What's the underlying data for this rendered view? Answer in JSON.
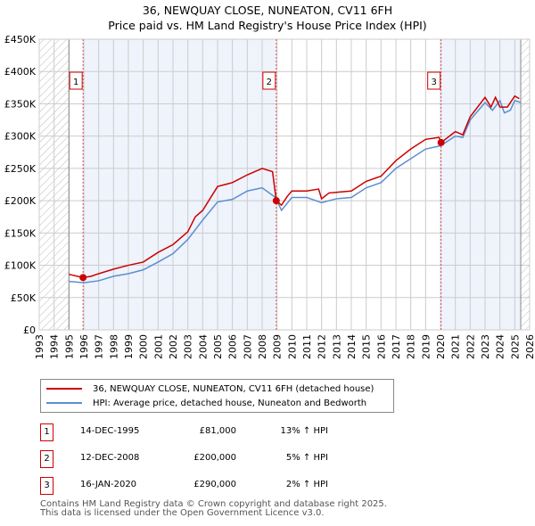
{
  "chart_data": {
    "type": "line",
    "title": "36, NEWQUAY CLOSE, NUNEATON, CV11 6FH",
    "subtitle": "Price paid vs. HM Land Registry's House Price Index (HPI)",
    "xlim": [
      1993,
      2026
    ],
    "ylim": [
      0,
      450000
    ],
    "x_ticks": [
      "1993",
      "1994",
      "1995",
      "1996",
      "1997",
      "1998",
      "1999",
      "2000",
      "2001",
      "2002",
      "2003",
      "2004",
      "2005",
      "2006",
      "2007",
      "2008",
      "2009",
      "2010",
      "2011",
      "2012",
      "2013",
      "2014",
      "2015",
      "2016",
      "2017",
      "2018",
      "2019",
      "2020",
      "2021",
      "2022",
      "2023",
      "2024",
      "2025",
      "2026"
    ],
    "y_ticks": [
      {
        "v": 0,
        "label": "£0"
      },
      {
        "v": 50000,
        "label": "£50K"
      },
      {
        "v": 100000,
        "label": "£100K"
      },
      {
        "v": 150000,
        "label": "£150K"
      },
      {
        "v": 200000,
        "label": "£200K"
      },
      {
        "v": 250000,
        "label": "£250K"
      },
      {
        "v": 300000,
        "label": "£300K"
      },
      {
        "v": 350000,
        "label": "£350K"
      },
      {
        "v": 400000,
        "label": "£400K"
      },
      {
        "v": 450000,
        "label": "£450K"
      }
    ],
    "grid": true,
    "series": [
      {
        "name": "36, NEWQUAY CLOSE, NUNEATON, CV11 6FH (detached house)",
        "color": "#cc0000",
        "x": [
          1995,
          1995.95,
          1996.5,
          1997,
          1998,
          1999,
          2000,
          2001,
          2002,
          2003,
          2003.5,
          2004,
          2005,
          2006,
          2007,
          2008,
          2008.7,
          2008.95,
          2009.3,
          2009.7,
          2010,
          2011,
          2011.8,
          2012,
          2012.5,
          2013,
          2014,
          2015,
          2016,
          2017,
          2018,
          2019,
          2019.9,
          2020.04,
          2021,
          2021.5,
          2022,
          2023,
          2023.4,
          2023.7,
          2024,
          2024.5,
          2025,
          2025.3
        ],
        "y": [
          86000,
          81000,
          83000,
          87000,
          94000,
          100000,
          105000,
          120000,
          132000,
          152000,
          175000,
          185000,
          222000,
          228000,
          240000,
          250000,
          245000,
          200000,
          193000,
          207000,
          215000,
          215000,
          218000,
          203000,
          212000,
          213000,
          215000,
          230000,
          238000,
          262000,
          280000,
          295000,
          298000,
          290000,
          307000,
          302000,
          330000,
          360000,
          345000,
          360000,
          345000,
          345000,
          362000,
          358000
        ]
      },
      {
        "name": "HPI: Average price, detached house, Nuneaton and Bedworth",
        "color": "#5b8fd0",
        "x": [
          1995,
          1996,
          1997,
          1998,
          1999,
          2000,
          2001,
          2002,
          2003,
          2004,
          2005,
          2006,
          2007,
          2008,
          2008.9,
          2009.3,
          2010,
          2011,
          2012,
          2013,
          2014,
          2015,
          2016,
          2017,
          2018,
          2019,
          2020,
          2021,
          2021.5,
          2022,
          2023,
          2023.5,
          2024,
          2024.3,
          2024.7,
          2025,
          2025.4
        ],
        "y": [
          75000,
          73000,
          76000,
          83000,
          87000,
          93000,
          105000,
          118000,
          140000,
          170000,
          198000,
          202000,
          215000,
          220000,
          205000,
          185000,
          205000,
          205000,
          197000,
          203000,
          205000,
          220000,
          228000,
          250000,
          265000,
          280000,
          285000,
          300000,
          298000,
          325000,
          352000,
          340000,
          355000,
          336000,
          340000,
          355000,
          352000
        ]
      }
    ],
    "sales": [
      {
        "label": "1",
        "x": 1995.95,
        "y": 81000,
        "date": "14-DEC-1995",
        "price": "£81,000",
        "hpi": "13% ↑ HPI"
      },
      {
        "label": "2",
        "x": 2008.95,
        "y": 200000,
        "date": "12-DEC-2008",
        "price": "£200,000",
        "hpi": "5% ↑ HPI"
      },
      {
        "label": "3",
        "x": 2020.04,
        "y": 290000,
        "date": "16-JAN-2020",
        "price": "£290,000",
        "hpi": "2% ↑ HPI"
      }
    ],
    "data_range": [
      1995,
      2025.4
    ],
    "legend": "below"
  },
  "footer": {
    "line1": "Contains HM Land Registry data © Crown copyright and database right 2025.",
    "line2": "This data is licensed under the Open Government Licence v3.0."
  }
}
